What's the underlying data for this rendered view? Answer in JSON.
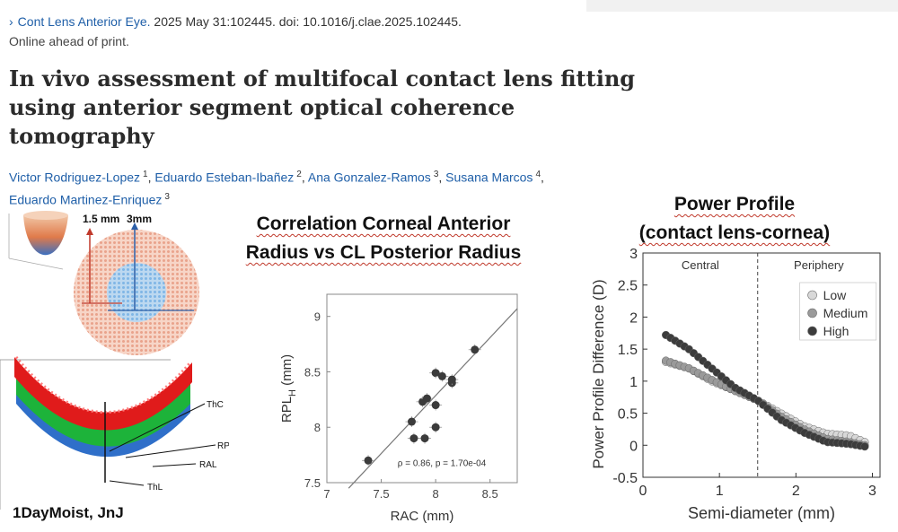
{
  "citation": {
    "chevron": "›",
    "journal": "Cont Lens Anterior Eye.",
    "details": " 2025 May 31:102445. doi: 10.1016/j.clae.2025.102445.",
    "status": "Online ahead of print."
  },
  "title_lines": [
    "In vivo assessment of multifocal contact lens fitting",
    "using anterior segment optical coherence",
    "tomography"
  ],
  "authors": [
    {
      "name": "Victor Rodriguez-Lopez",
      "aff": "1"
    },
    {
      "name": "Eduardo Esteban-Ibañez",
      "aff": "2"
    },
    {
      "name": "Ana Gonzalez-Ramos",
      "aff": "3"
    },
    {
      "name": "Susana Marcos",
      "aff": "4"
    },
    {
      "name": "Eduardo Martinez-Enriquez",
      "aff": "3"
    }
  ],
  "diagram": {
    "label_15": "1.5 mm",
    "label_3": "3mm",
    "layer_thc": "ThC",
    "layer_rpl": "RPL",
    "layer_ral": "RAL",
    "layer_thl": "ThL",
    "brand": "1DayMoist, JnJ"
  },
  "correlation": {
    "title_line1": "Correlation Corneal Anterior",
    "title_line2": "Radius vs CL Posterior Radius"
  },
  "power": {
    "title_line1": "Power Profile",
    "title_line2": "(contact lens-cornea)"
  },
  "chart_data": [
    {
      "type": "scatter",
      "title": "Correlation Corneal Anterior Radius vs CL Posterior Radius",
      "xlabel": "RAC (mm)",
      "ylabel": "RPL",
      "ylabel_sub": "H",
      "ylabel_unit": " (mm)",
      "xlim": [
        7,
        8.75
      ],
      "ylim": [
        7.5,
        9.2
      ],
      "xticks": [
        7,
        7.5,
        8,
        8.5
      ],
      "yticks": [
        7.5,
        8,
        8.5,
        9
      ],
      "xtick_labels": [
        "7",
        "7.5",
        "8",
        "8.5"
      ],
      "ytick_labels": [
        "7.5",
        "8",
        "8.5",
        "9"
      ],
      "annotation": "ρ = 0.86, p = 1.70e-04",
      "points": [
        {
          "x": 7.38,
          "y": 7.7
        },
        {
          "x": 7.78,
          "y": 8.05
        },
        {
          "x": 7.8,
          "y": 7.9
        },
        {
          "x": 7.9,
          "y": 7.9
        },
        {
          "x": 7.88,
          "y": 8.23
        },
        {
          "x": 7.92,
          "y": 8.26
        },
        {
          "x": 8.0,
          "y": 8.0
        },
        {
          "x": 8.0,
          "y": 8.2
        },
        {
          "x": 8.0,
          "y": 8.49
        },
        {
          "x": 8.06,
          "y": 8.46
        },
        {
          "x": 8.15,
          "y": 8.4
        },
        {
          "x": 8.15,
          "y": 8.43
        },
        {
          "x": 8.36,
          "y": 8.7
        }
      ],
      "fit_line": {
        "x1": 7.2,
        "y1": 7.45,
        "x2": 8.75,
        "y2": 9.07
      }
    },
    {
      "type": "scatter",
      "title": "Power Profile (contact lens-cornea)",
      "xlabel": "Semi-diameter (mm)",
      "ylabel": "Power Profile Difference (D)",
      "xlim": [
        0,
        3.1
      ],
      "ylim": [
        -0.5,
        3
      ],
      "xticks": [
        0,
        1,
        2,
        3
      ],
      "yticks": [
        -0.5,
        0,
        0.5,
        1,
        1.5,
        2,
        2.5,
        3
      ],
      "xtick_labels": [
        "0",
        "1",
        "2",
        "3"
      ],
      "ytick_labels": [
        "-0.5",
        "0",
        "0.5",
        "1",
        "1.5",
        "2",
        "2.5",
        "3"
      ],
      "divider_x": 1.5,
      "region_labels": [
        "Central",
        "Periphery"
      ],
      "legend_position": "top-right",
      "series": [
        {
          "name": "Low",
          "color": "#d8d8d8",
          "x": [
            0.3,
            0.6,
            0.9,
            1.2,
            1.5,
            1.8,
            2.1,
            2.4,
            2.7,
            2.9
          ],
          "y": [
            1.3,
            1.2,
            1.0,
            0.85,
            0.7,
            0.5,
            0.3,
            0.18,
            0.15,
            0.05
          ]
        },
        {
          "name": "Medium",
          "color": "#9a9a9a",
          "x": [
            0.3,
            0.6,
            0.9,
            1.2,
            1.5,
            1.8,
            2.1,
            2.4,
            2.7,
            2.9
          ],
          "y": [
            1.32,
            1.2,
            1.02,
            0.85,
            0.7,
            0.45,
            0.25,
            0.1,
            0.05,
            0.0
          ]
        },
        {
          "name": "High",
          "color": "#3c3c3c",
          "x": [
            0.3,
            0.6,
            0.9,
            1.2,
            1.5,
            1.8,
            2.1,
            2.4,
            2.7,
            2.9
          ],
          "y": [
            1.72,
            1.5,
            1.2,
            0.9,
            0.7,
            0.4,
            0.2,
            0.05,
            0.02,
            -0.02
          ]
        }
      ]
    }
  ]
}
